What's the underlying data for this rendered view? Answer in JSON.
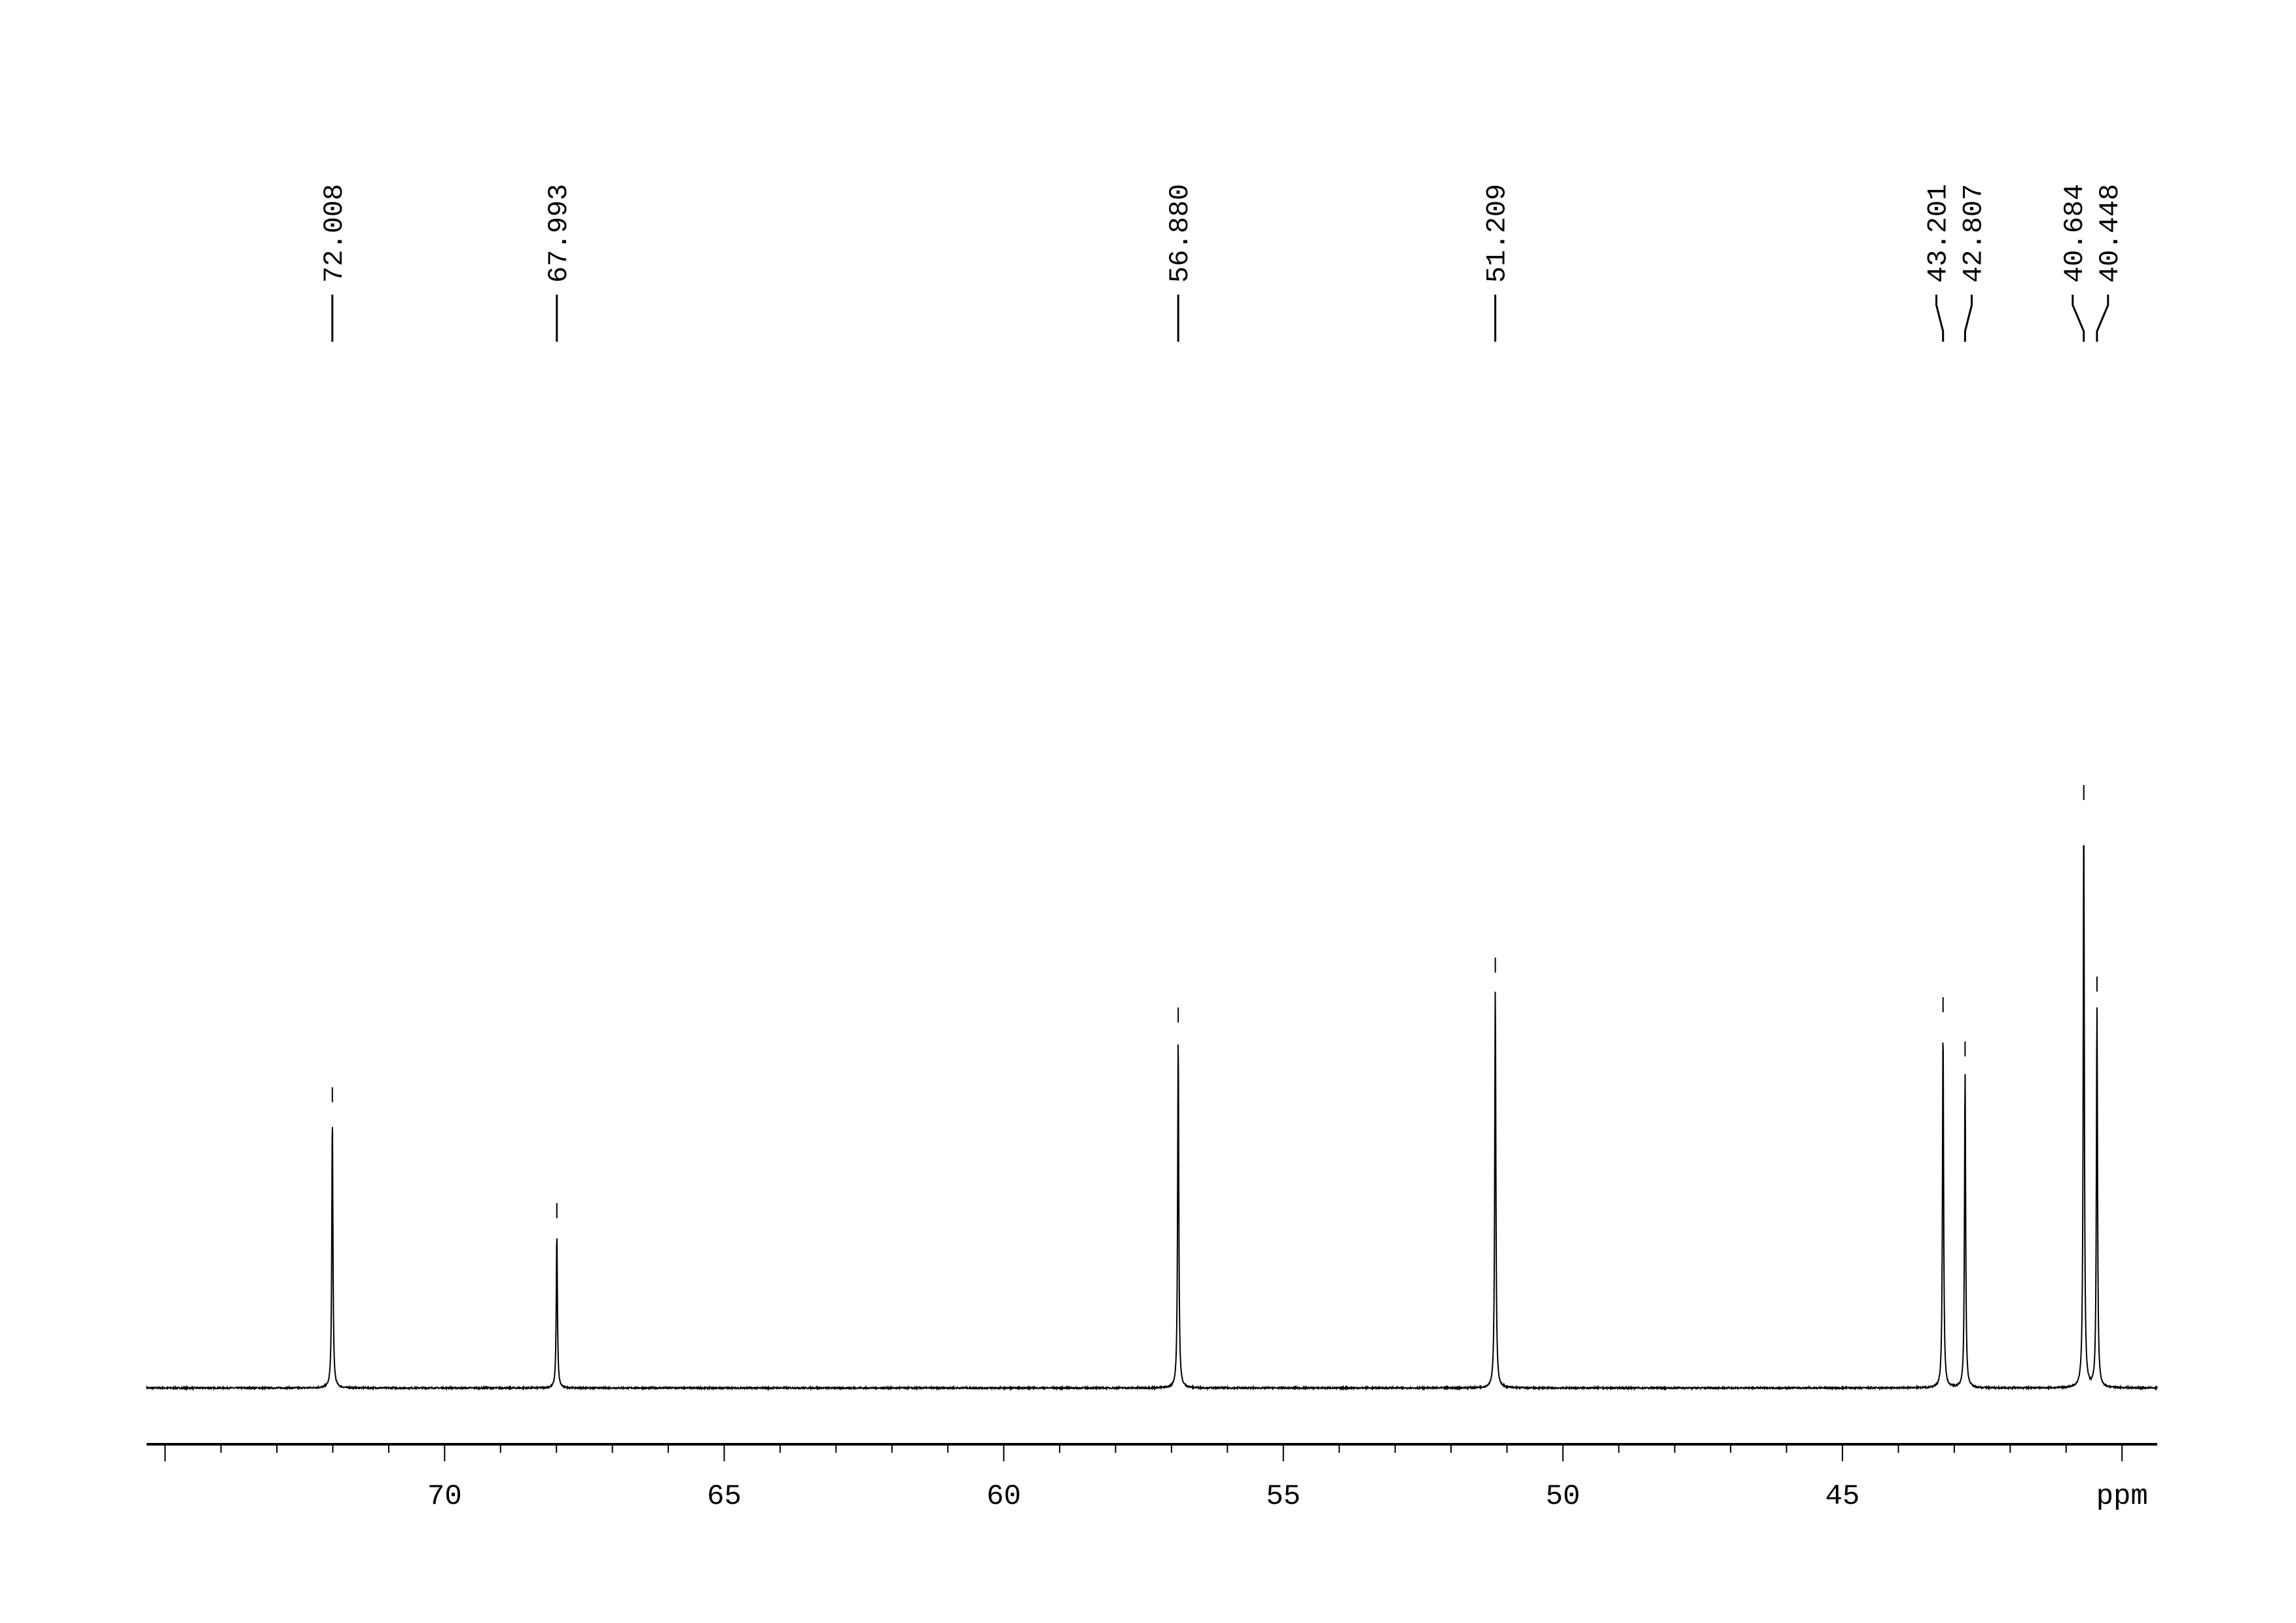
{
  "chart_data": {
    "type": "line",
    "title": "",
    "xlabel": "ppm",
    "ylabel": "",
    "xlim": [
      75.33,
      39.37
    ],
    "x_reversed": true,
    "grid": false,
    "legend": "none",
    "line_color": "#000000",
    "x_ticks": {
      "major": [
        75,
        70,
        65,
        60,
        55,
        50,
        45,
        40
      ],
      "labels": [
        "",
        "70",
        "65",
        "60",
        "55",
        "50",
        "45",
        "ppm"
      ],
      "minor_step": 1
    },
    "peaks": [
      {
        "ppm": 72.008,
        "label": "72.008",
        "relative_intensity": 47.3
      },
      {
        "ppm": 67.993,
        "label": "67.993",
        "relative_intensity": 27.1
      },
      {
        "ppm": 56.88,
        "label": "56.880",
        "relative_intensity": 61.2
      },
      {
        "ppm": 51.209,
        "label": "51.209",
        "relative_intensity": 69.9
      },
      {
        "ppm": 43.201,
        "label": "43.201",
        "relative_intensity": 63.0
      },
      {
        "ppm": 42.807,
        "label": "42.807",
        "relative_intensity": 55.3
      },
      {
        "ppm": 40.684,
        "label": "40.684",
        "relative_intensity": 100
      },
      {
        "ppm": 40.448,
        "label": "40.448",
        "relative_intensity": 66.6
      }
    ]
  }
}
